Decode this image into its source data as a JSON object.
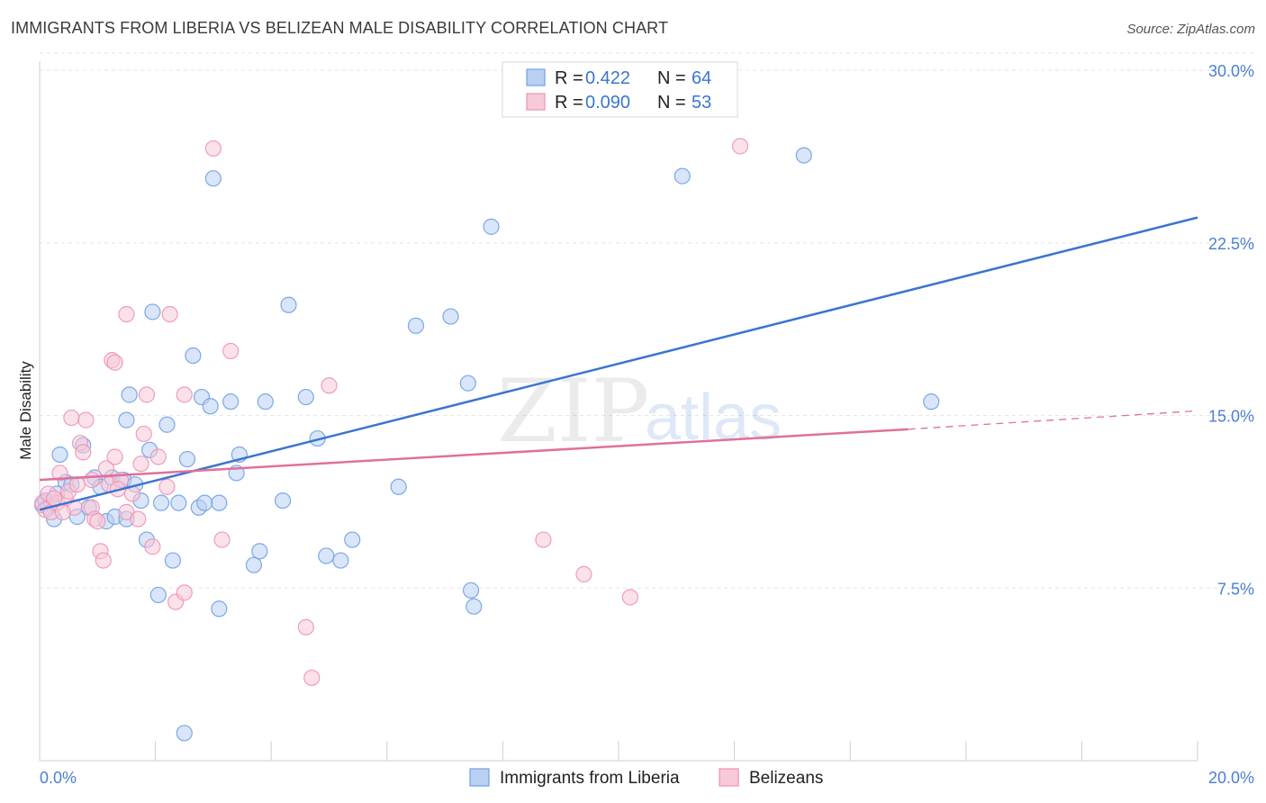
{
  "chart_data": {
    "type": "scatter",
    "title": "IMMIGRANTS FROM LIBERIA VS BELIZEAN MALE DISABILITY CORRELATION CHART",
    "source": "Source: ZipAtlas.com",
    "xlabel": "",
    "ylabel": "Male Disability",
    "xlim": [
      0,
      20
    ],
    "ylim": [
      0,
      30
    ],
    "x_tick_labels": [
      "0.0%",
      "20.0%"
    ],
    "y_ticks": [
      {
        "value": 7.5,
        "label": "7.5%"
      },
      {
        "value": 15,
        "label": "15.0%"
      },
      {
        "value": 22.5,
        "label": "22.5%"
      },
      {
        "value": 30,
        "label": "30.0%"
      }
    ],
    "watermark": {
      "zip": "ZIP",
      "atlas": "atlas"
    },
    "legend": {
      "r_label": "R =",
      "n_label": "N =",
      "entries": [
        {
          "r": "0.422",
          "n": "64"
        },
        {
          "r": "0.090",
          "n": "53"
        }
      ]
    },
    "series": [
      {
        "name": "Immigrants from Liberia",
        "color": "#6fa0e6",
        "fill": "#b9d0f2",
        "line_color": "#3a75d1",
        "trend": {
          "x0": 0,
          "y0": 10.9,
          "x1": 20,
          "y1": 23.6
        },
        "points": [
          [
            0.05,
            11.1
          ],
          [
            0.1,
            11.3
          ],
          [
            0.15,
            11.0
          ],
          [
            0.2,
            11.2
          ],
          [
            0.25,
            10.5
          ],
          [
            0.35,
            13.3
          ],
          [
            0.45,
            12.1
          ],
          [
            0.55,
            12.0
          ],
          [
            0.65,
            10.6
          ],
          [
            0.75,
            13.7
          ],
          [
            0.85,
            11.0
          ],
          [
            0.95,
            12.3
          ],
          [
            1.05,
            11.9
          ],
          [
            1.15,
            10.4
          ],
          [
            1.25,
            12.3
          ],
          [
            1.3,
            10.6
          ],
          [
            1.45,
            12.2
          ],
          [
            1.5,
            10.5
          ],
          [
            1.5,
            14.8
          ],
          [
            1.55,
            15.9
          ],
          [
            1.65,
            12.0
          ],
          [
            1.75,
            11.3
          ],
          [
            1.85,
            9.6
          ],
          [
            1.9,
            13.5
          ],
          [
            1.95,
            19.5
          ],
          [
            2.05,
            7.2
          ],
          [
            2.1,
            11.2
          ],
          [
            2.2,
            14.6
          ],
          [
            2.3,
            8.7
          ],
          [
            2.4,
            11.2
          ],
          [
            2.55,
            13.1
          ],
          [
            2.65,
            17.6
          ],
          [
            2.75,
            11.0
          ],
          [
            2.8,
            15.8
          ],
          [
            2.85,
            11.2
          ],
          [
            2.95,
            15.4
          ],
          [
            3.0,
            25.3
          ],
          [
            3.1,
            6.6
          ],
          [
            3.1,
            11.2
          ],
          [
            3.3,
            15.6
          ],
          [
            3.4,
            12.5
          ],
          [
            3.45,
            13.3
          ],
          [
            3.7,
            8.5
          ],
          [
            3.8,
            9.1
          ],
          [
            3.9,
            15.6
          ],
          [
            4.2,
            11.3
          ],
          [
            4.3,
            19.8
          ],
          [
            4.6,
            15.8
          ],
          [
            4.8,
            14.0
          ],
          [
            4.95,
            8.9
          ],
          [
            5.2,
            8.7
          ],
          [
            5.4,
            9.6
          ],
          [
            6.2,
            11.9
          ],
          [
            6.5,
            18.9
          ],
          [
            7.1,
            19.3
          ],
          [
            7.4,
            16.4
          ],
          [
            7.5,
            6.7
          ],
          [
            7.8,
            23.2
          ],
          [
            7.45,
            7.4
          ],
          [
            11.1,
            25.4
          ],
          [
            13.2,
            26.3
          ],
          [
            15.4,
            15.6
          ],
          [
            2.5,
            1.2
          ],
          [
            0.3,
            11.6
          ]
        ]
      },
      {
        "name": "Belizeans",
        "color": "#ee93b2",
        "fill": "#f8c9d8",
        "line_color": "#e0709a",
        "trend": {
          "x0": 0,
          "y0": 12.2,
          "x1": 15,
          "y1": 14.4
        },
        "trend_dashed": {
          "x0": 15,
          "y0": 14.4,
          "x1": 20,
          "y1": 15.2
        },
        "points": [
          [
            0.05,
            11.2
          ],
          [
            0.1,
            10.9
          ],
          [
            0.15,
            11.6
          ],
          [
            0.2,
            10.8
          ],
          [
            0.3,
            11.2
          ],
          [
            0.35,
            12.5
          ],
          [
            0.45,
            11.4
          ],
          [
            0.5,
            11.7
          ],
          [
            0.55,
            14.9
          ],
          [
            0.6,
            11.0
          ],
          [
            0.7,
            13.8
          ],
          [
            0.75,
            13.4
          ],
          [
            0.8,
            14.8
          ],
          [
            0.9,
            11.0
          ],
          [
            0.95,
            10.5
          ],
          [
            1.05,
            9.1
          ],
          [
            1.1,
            8.7
          ],
          [
            1.15,
            12.7
          ],
          [
            1.2,
            12.0
          ],
          [
            1.25,
            17.4
          ],
          [
            1.3,
            17.3
          ],
          [
            1.3,
            13.2
          ],
          [
            1.4,
            12.2
          ],
          [
            1.5,
            10.8
          ],
          [
            1.5,
            19.4
          ],
          [
            1.6,
            11.6
          ],
          [
            1.7,
            10.5
          ],
          [
            1.75,
            12.9
          ],
          [
            1.8,
            14.2
          ],
          [
            1.85,
            15.9
          ],
          [
            1.95,
            9.3
          ],
          [
            2.05,
            13.2
          ],
          [
            2.2,
            11.9
          ],
          [
            2.25,
            19.4
          ],
          [
            2.35,
            6.9
          ],
          [
            2.5,
            7.3
          ],
          [
            2.5,
            15.9
          ],
          [
            3.0,
            26.6
          ],
          [
            3.15,
            9.6
          ],
          [
            3.3,
            17.8
          ],
          [
            4.6,
            5.8
          ],
          [
            4.7,
            3.6
          ],
          [
            5.0,
            16.3
          ],
          [
            8.7,
            9.6
          ],
          [
            9.4,
            8.1
          ],
          [
            10.2,
            7.1
          ],
          [
            12.1,
            26.7
          ],
          [
            0.25,
            11.4
          ],
          [
            0.4,
            10.8
          ],
          [
            0.65,
            12.0
          ],
          [
            0.9,
            12.2
          ],
          [
            1.0,
            10.4
          ],
          [
            1.35,
            11.8
          ]
        ]
      }
    ]
  }
}
